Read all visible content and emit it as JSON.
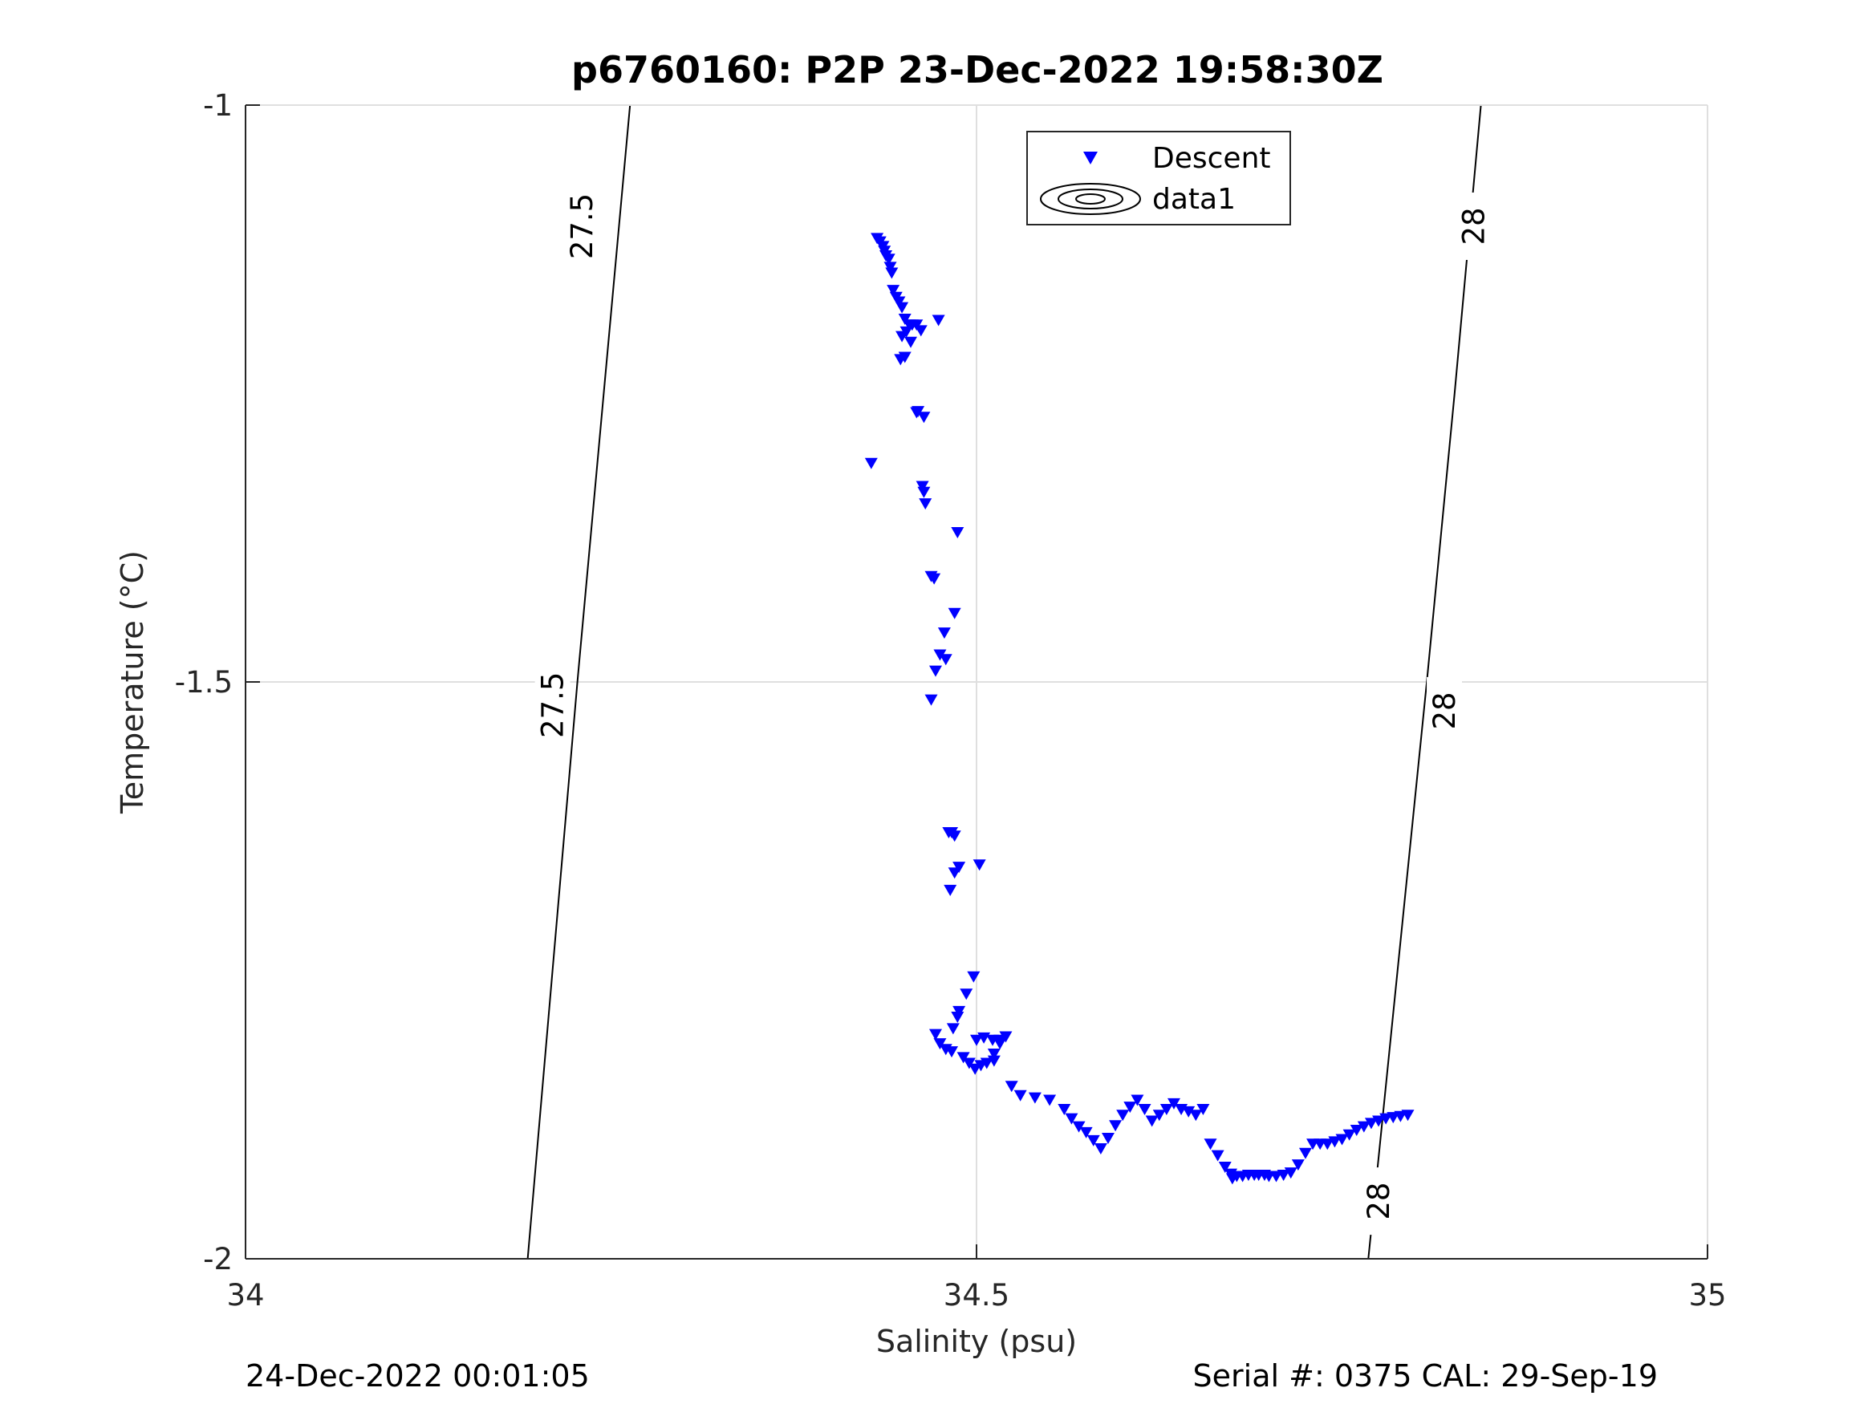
{
  "chart_data": {
    "type": "scatter",
    "title": "p6760160: P2P 23-Dec-2022 19:58:30Z",
    "xlabel": "Salinity (psu)",
    "ylabel": "Temperature (°C)",
    "xlim": [
      34,
      35
    ],
    "ylim": [
      -2,
      -1
    ],
    "xticks": [
      34,
      34.5,
      35
    ],
    "xtick_labels": [
      "34",
      "34.5",
      "35"
    ],
    "yticks": [
      -2,
      -1.5,
      -1
    ],
    "ytick_labels": [
      "-2",
      "-1.5",
      "-1"
    ],
    "grid": true,
    "legend_placement": "top-center",
    "legend": [
      {
        "label": "Descent",
        "marker": "triangle-down",
        "color": "#0000ff"
      },
      {
        "label": "data1",
        "marker": "contour",
        "color": "#000000"
      }
    ],
    "footer_left": "24-Dec-2022 00:01:05",
    "footer_right": "Serial #: 0375  CAL: 29-Sep-19",
    "contours": [
      {
        "level": "27.5",
        "points": [
          [
            34.193,
            -2.0
          ],
          [
            34.21,
            -1.75
          ],
          [
            34.227,
            -1.5
          ],
          [
            34.245,
            -1.25
          ],
          [
            34.263,
            -1.0
          ]
        ],
        "label_positions": [
          [
            34.23,
            -1.105
          ],
          [
            34.21,
            -1.52
          ]
        ]
      },
      {
        "level": "28",
        "points": [
          [
            34.768,
            -2.0
          ],
          [
            34.788,
            -1.75
          ],
          [
            34.808,
            -1.5
          ],
          [
            34.827,
            -1.25
          ],
          [
            34.845,
            -1.0
          ]
        ],
        "label_positions": [
          [
            34.84,
            -1.105
          ],
          [
            34.82,
            -1.525
          ],
          [
            34.775,
            -1.95
          ]
        ]
      }
    ],
    "series": [
      {
        "name": "Descent",
        "color": "#0000ff",
        "marker": "triangle-down",
        "x": [
          34.432,
          34.434,
          34.436,
          34.437,
          34.438,
          34.44,
          34.441,
          34.442,
          34.443,
          34.445,
          34.447,
          34.449,
          34.451,
          34.452,
          34.454,
          34.456,
          34.459,
          34.462,
          34.451,
          34.455,
          34.449,
          34.448,
          34.46,
          34.464,
          34.474,
          34.459,
          34.463,
          34.464,
          34.428,
          34.465,
          34.487,
          34.469,
          34.471,
          34.485,
          34.478,
          34.475,
          34.472,
          34.469,
          34.479,
          34.481,
          34.483,
          34.485,
          34.502,
          34.488,
          34.485,
          34.482,
          34.498,
          34.493,
          34.488,
          34.484,
          34.487,
          34.472,
          34.475,
          34.479,
          34.483,
          34.491,
          34.495,
          34.499,
          34.503,
          34.507,
          34.512,
          34.5,
          34.505,
          34.511,
          34.516,
          34.52,
          34.516,
          34.512,
          34.524,
          34.53,
          34.54,
          34.55,
          34.56,
          34.565,
          34.57,
          34.575,
          34.58,
          34.585,
          34.59,
          34.595,
          34.6,
          34.605,
          34.61,
          34.615,
          34.62,
          34.625,
          34.63,
          34.635,
          34.64,
          34.645,
          34.65,
          34.655,
          34.66,
          34.665,
          34.67,
          34.674,
          34.675,
          34.678,
          34.682,
          34.686,
          34.69,
          34.693,
          34.697,
          34.7,
          34.705,
          34.71,
          34.715,
          34.72,
          34.725,
          34.73,
          34.735,
          34.74,
          34.745,
          34.75,
          34.755,
          34.76,
          34.765,
          34.77,
          34.775,
          34.78,
          34.785,
          34.79,
          34.795
        ],
        "y": [
          -1.115,
          -1.118,
          -1.122,
          -1.126,
          -1.13,
          -1.133,
          -1.14,
          -1.145,
          -1.16,
          -1.166,
          -1.17,
          -1.175,
          -1.185,
          -1.196,
          -1.19,
          -1.19,
          -1.19,
          -1.195,
          -1.218,
          -1.205,
          -1.2,
          -1.22,
          -1.265,
          -1.27,
          -1.186,
          -1.266,
          -1.33,
          -1.335,
          -1.31,
          -1.345,
          -1.37,
          -1.408,
          -1.41,
          -1.44,
          -1.457,
          -1.476,
          -1.49,
          -1.515,
          -1.48,
          -1.63,
          -1.63,
          -1.633,
          -1.658,
          -1.66,
          -1.665,
          -1.68,
          -1.755,
          -1.77,
          -1.785,
          -1.8,
          -1.79,
          -1.805,
          -1.813,
          -1.818,
          -1.82,
          -1.825,
          -1.83,
          -1.835,
          -1.832,
          -1.83,
          -1.822,
          -1.81,
          -1.808,
          -1.81,
          -1.81,
          -1.807,
          -1.813,
          -1.828,
          -1.85,
          -1.858,
          -1.86,
          -1.862,
          -1.87,
          -1.878,
          -1.885,
          -1.89,
          -1.897,
          -1.904,
          -1.895,
          -1.884,
          -1.875,
          -1.868,
          -1.862,
          -1.87,
          -1.88,
          -1.875,
          -1.87,
          -1.865,
          -1.87,
          -1.872,
          -1.875,
          -1.87,
          -1.9,
          -1.91,
          -1.92,
          -1.926,
          -1.93,
          -1.928,
          -1.928,
          -1.927,
          -1.927,
          -1.927,
          -1.927,
          -1.928,
          -1.928,
          -1.927,
          -1.925,
          -1.918,
          -1.908,
          -1.9,
          -1.9,
          -1.9,
          -1.898,
          -1.896,
          -1.892,
          -1.888,
          -1.885,
          -1.882,
          -1.88,
          -1.878,
          -1.877,
          -1.876,
          -1.875
        ]
      }
    ]
  }
}
